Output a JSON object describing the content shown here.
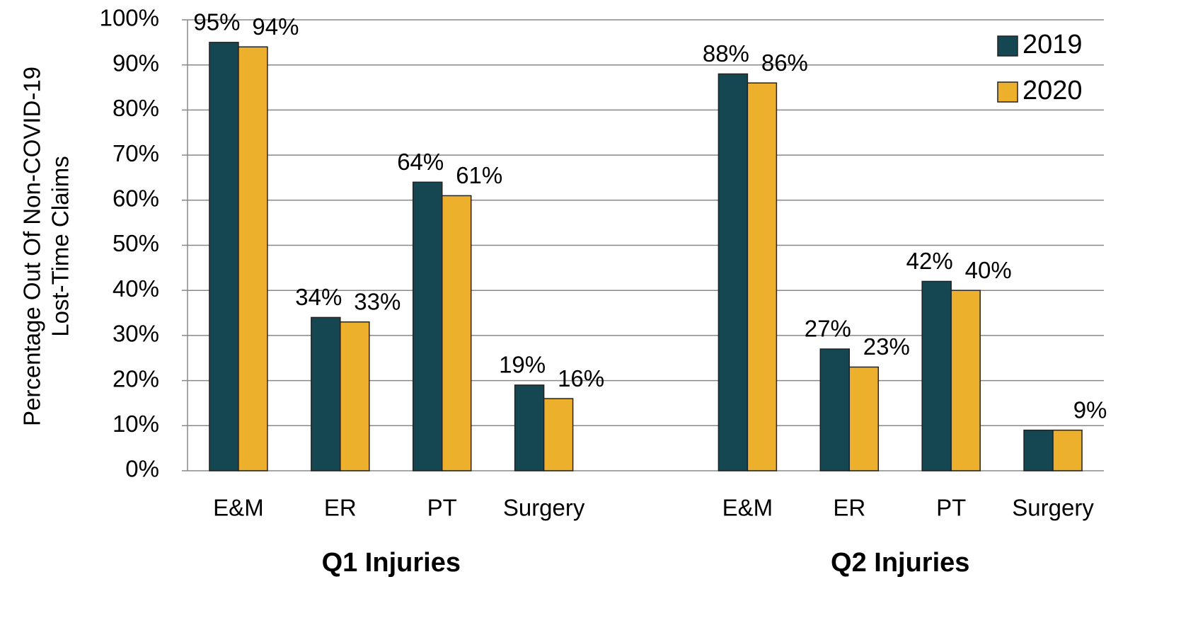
{
  "chart_data": {
    "type": "bar",
    "ylabel": [
      "Percentage Out Of Non-COVID-19",
      "Lost-Time Claims"
    ],
    "categories": [
      "E&M",
      "ER",
      "PT",
      "Surgery",
      null,
      "E&M",
      "ER",
      "PT",
      "Surgery"
    ],
    "groups": [
      "Q1 Injuries",
      "Q2 Injuries"
    ],
    "series": [
      {
        "name": "2019",
        "color": "#154753",
        "values": [
          95,
          34,
          64,
          19,
          null,
          88,
          27,
          42,
          9
        ],
        "value_labels": [
          "95%",
          "34%",
          "64%",
          "19%",
          null,
          "88%",
          "27%",
          "42%",
          null
        ]
      },
      {
        "name": "2020",
        "color": "#edb02c",
        "values": [
          94,
          33,
          61,
          16,
          null,
          86,
          23,
          40,
          9
        ],
        "value_labels": [
          "94%",
          "33%",
          "61%",
          "16%",
          null,
          "86%",
          "23%",
          "40%",
          "9%"
        ]
      }
    ],
    "ylim": [
      0,
      100
    ],
    "yticks": [
      {
        "value": 0,
        "label": "0%"
      },
      {
        "value": 10,
        "label": "10%"
      },
      {
        "value": 20,
        "label": "20%"
      },
      {
        "value": 30,
        "label": "30%"
      },
      {
        "value": 40,
        "label": "40%"
      },
      {
        "value": 50,
        "label": "50%"
      },
      {
        "value": 60,
        "label": "60%"
      },
      {
        "value": 70,
        "label": "70%"
      },
      {
        "value": 80,
        "label": "80%"
      },
      {
        "value": 90,
        "label": "90%"
      },
      {
        "value": 100,
        "label": "100%"
      }
    ],
    "grid": true,
    "legend": "top-right"
  }
}
